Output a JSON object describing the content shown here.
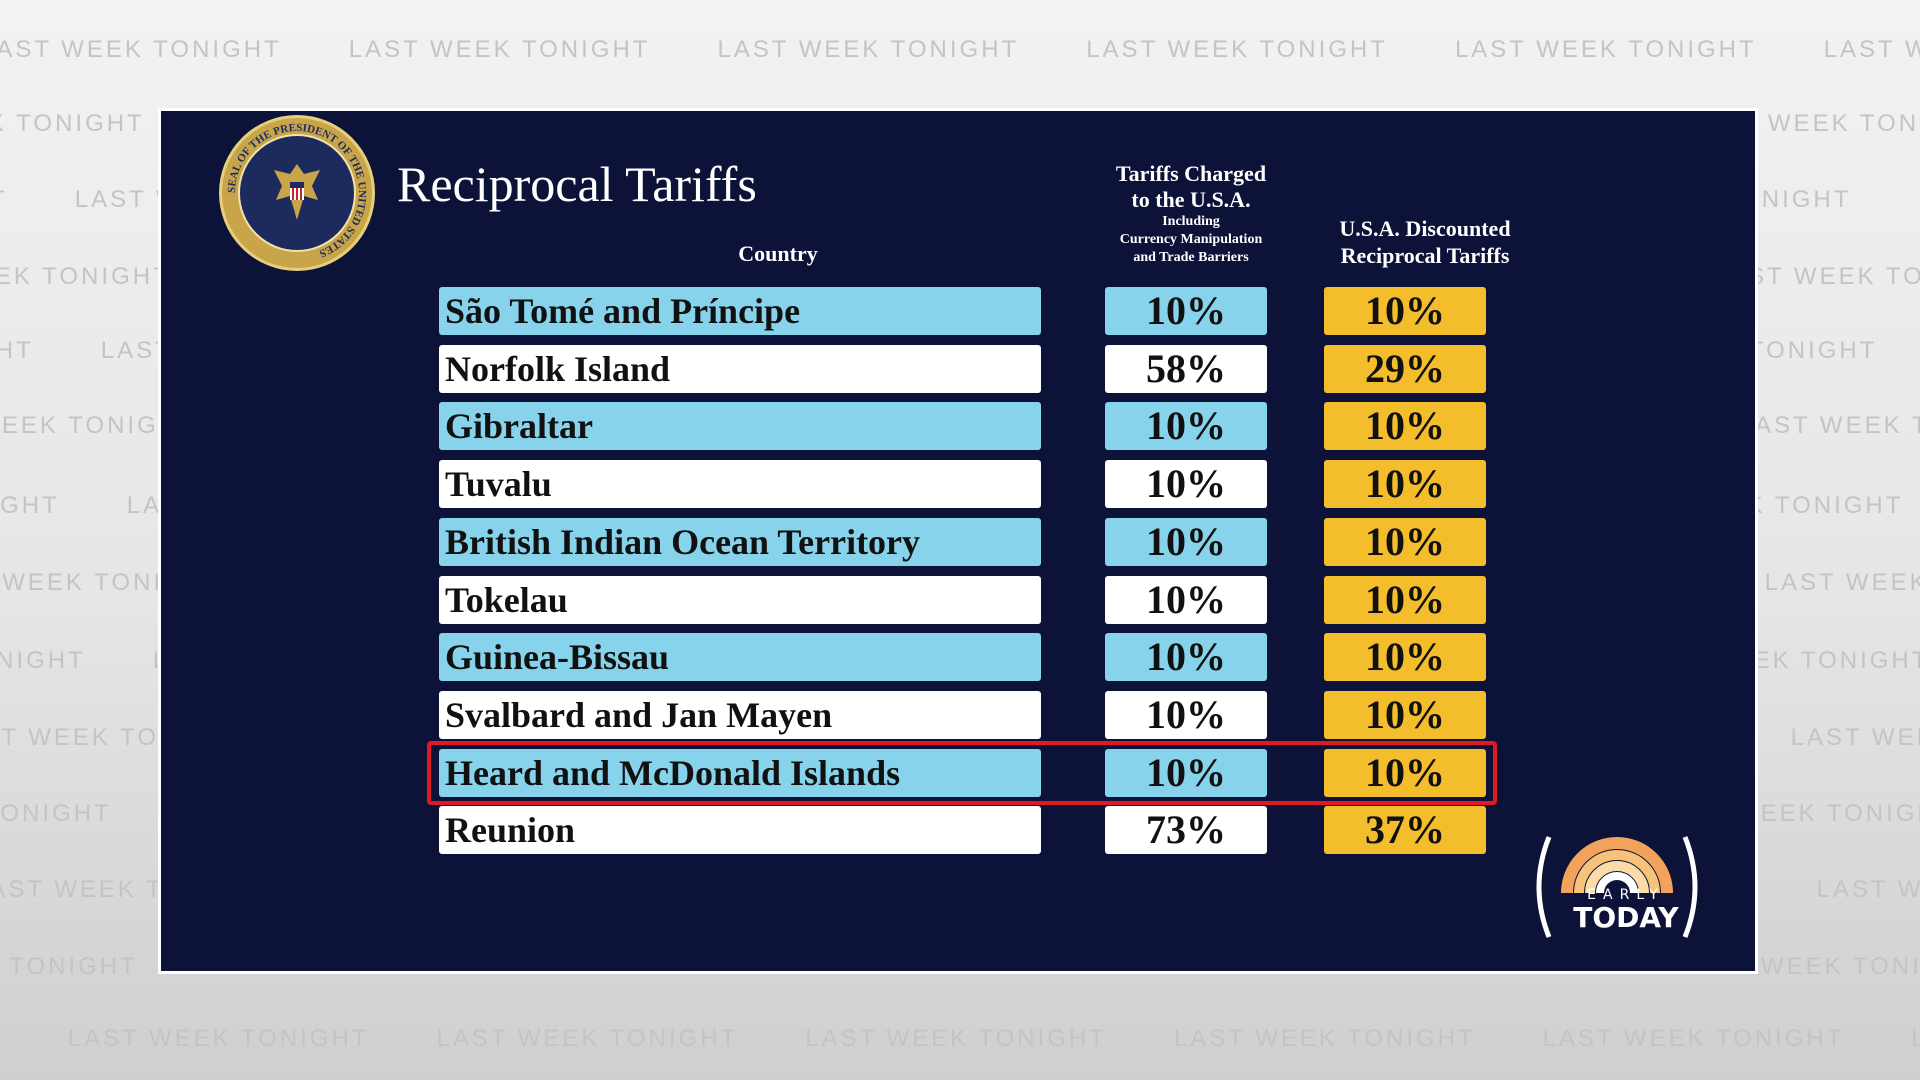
{
  "watermark": "LAST WEEK TONIGHT",
  "title": "Reciprocal Tariffs",
  "headers": {
    "country": "Country",
    "charged_line1": "Tariffs Charged",
    "charged_line2": "to the U.S.A.",
    "charged_sub1": "Including",
    "charged_sub2": "Currency Manipulation",
    "charged_sub3": "and Trade Barriers",
    "discounted_line1": "U.S.A. Discounted",
    "discounted_line2": "Reciprocal Tariffs"
  },
  "rows": [
    {
      "country": "São Tomé and Príncipe",
      "charged": "10%",
      "discounted": "10%"
    },
    {
      "country": "Norfolk Island",
      "charged": "58%",
      "discounted": "29%"
    },
    {
      "country": "Gibraltar",
      "charged": "10%",
      "discounted": "10%"
    },
    {
      "country": "Tuvalu",
      "charged": "10%",
      "discounted": "10%"
    },
    {
      "country": "British Indian Ocean Territory",
      "charged": "10%",
      "discounted": "10%"
    },
    {
      "country": "Tokelau",
      "charged": "10%",
      "discounted": "10%"
    },
    {
      "country": "Guinea-Bissau",
      "charged": "10%",
      "discounted": "10%"
    },
    {
      "country": "Svalbard and Jan Mayen",
      "charged": "10%",
      "discounted": "10%"
    },
    {
      "country": "Heard and McDonald Islands",
      "charged": "10%",
      "discounted": "10%"
    },
    {
      "country": "Reunion",
      "charged": "73%",
      "discounted": "37%"
    }
  ],
  "highlighted_row": "Heard and McDonald Islands",
  "seal_text": "SEAL OF THE PRESIDENT OF THE UNITED STATES",
  "logo": {
    "line1": "EARLY",
    "line2": "TODAY"
  },
  "colors": {
    "panel_bg": "#0d1238",
    "row_blue": "#87d3ec",
    "row_white": "#ffffff",
    "discount_yellow": "#f3bd2c",
    "highlight_red": "#e01a22"
  }
}
